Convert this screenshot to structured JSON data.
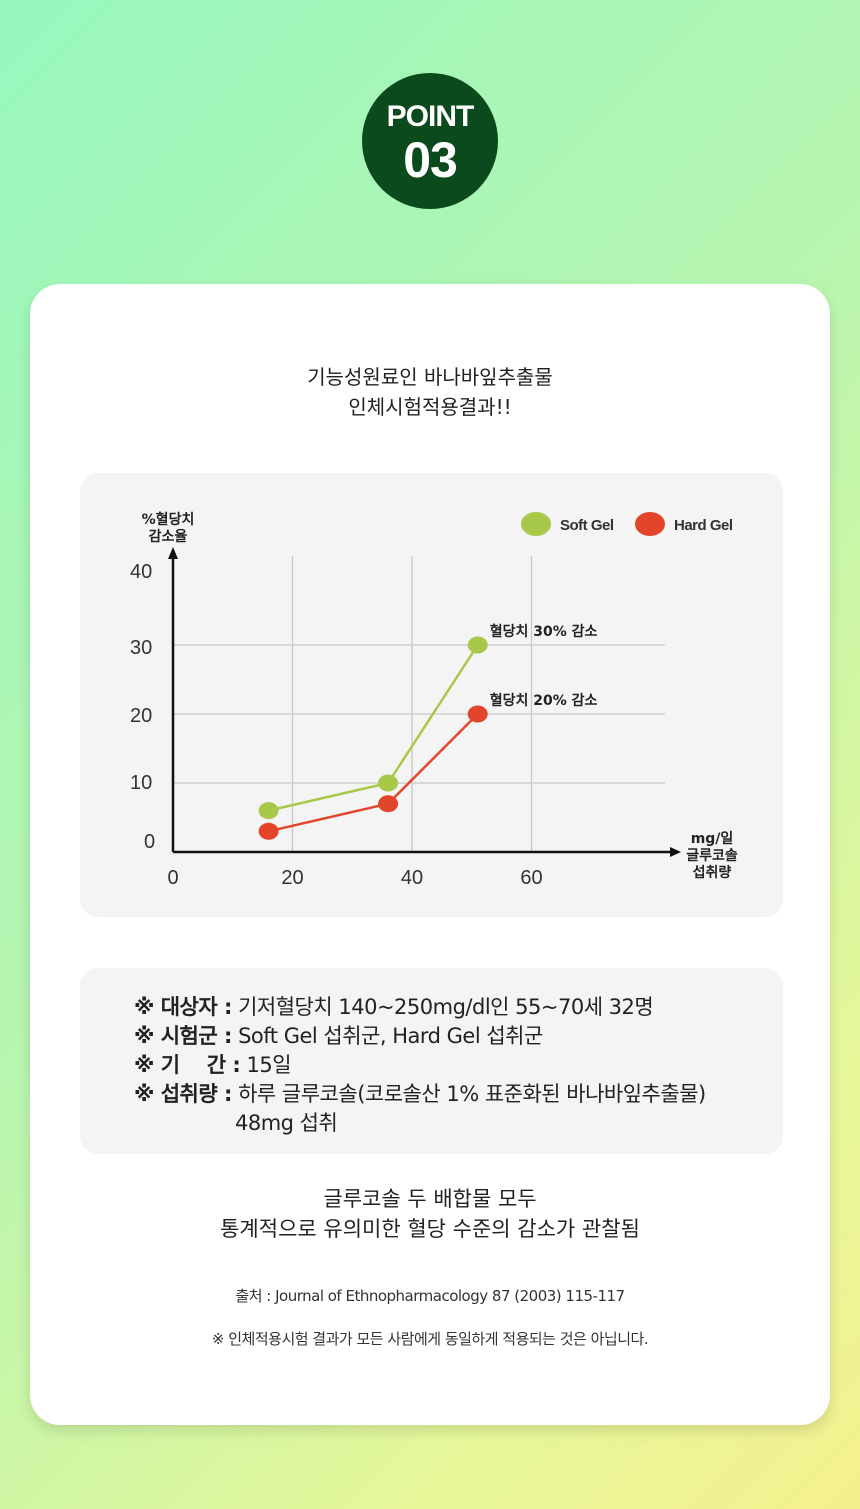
{
  "badge": {
    "line1": "POINT",
    "line2": "03"
  },
  "intro": {
    "line1": "기능성원료인 바나바잎추출물",
    "line2": "인체시험적용결과!!"
  },
  "chart_data": {
    "type": "line",
    "ylabel_line1": "%혈당치",
    "ylabel_line2": "감소율",
    "xlabel_line1": "mg/일",
    "xlabel_line2": "글루코솔",
    "xlabel_line3": "섭취량",
    "xlim": [
      0,
      80
    ],
    "ylim": [
      0,
      40
    ],
    "x_ticks": [
      "0",
      "20",
      "40",
      "60"
    ],
    "y_ticks": [
      "0",
      "10",
      "20",
      "30",
      "40"
    ],
    "grid": true,
    "legend_position": "top-right",
    "series": [
      {
        "name": "Soft Gel",
        "color": "#a8c84a",
        "x": [
          16,
          36,
          51
        ],
        "y": [
          6,
          10,
          30
        ]
      },
      {
        "name": "Hard Gel",
        "color": "#e2452a",
        "x": [
          16,
          36,
          51
        ],
        "y": [
          3,
          7,
          20
        ]
      }
    ],
    "annotations": [
      {
        "text": "혈당치 30% 감소",
        "x": 51,
        "y": 30
      },
      {
        "text": "혈당치 20% 감소",
        "x": 51,
        "y": 20
      }
    ]
  },
  "info": {
    "rows": [
      {
        "label": "※ 대상자 :",
        "value": "기저혈당치 140~250mg/dl인 55~70세 32명"
      },
      {
        "label": "※ 시험군 :",
        "value": "Soft Gel 섭취군, Hard Gel 섭취군"
      },
      {
        "label": "※ 기    간 :",
        "value": "15일"
      },
      {
        "label": "※ 섭취량 :",
        "value": "하루 글루코솔(코로솔산 1% 표준화된 바나바잎추출물)"
      }
    ],
    "continuation": "48mg 섭취"
  },
  "conclusion": {
    "line1": "글루코솔 두 배합물 모두",
    "line2": "통계적으로 유의미한 혈당 수준의 감소가 관찰됨"
  },
  "source": "출처 : Journal of Ethnopharmacology 87 (2003) 115-117",
  "disclaimer": "※ 인체적용시험 결과가 모든 사람에게 동일하게 적용되는 것은 아닙니다."
}
